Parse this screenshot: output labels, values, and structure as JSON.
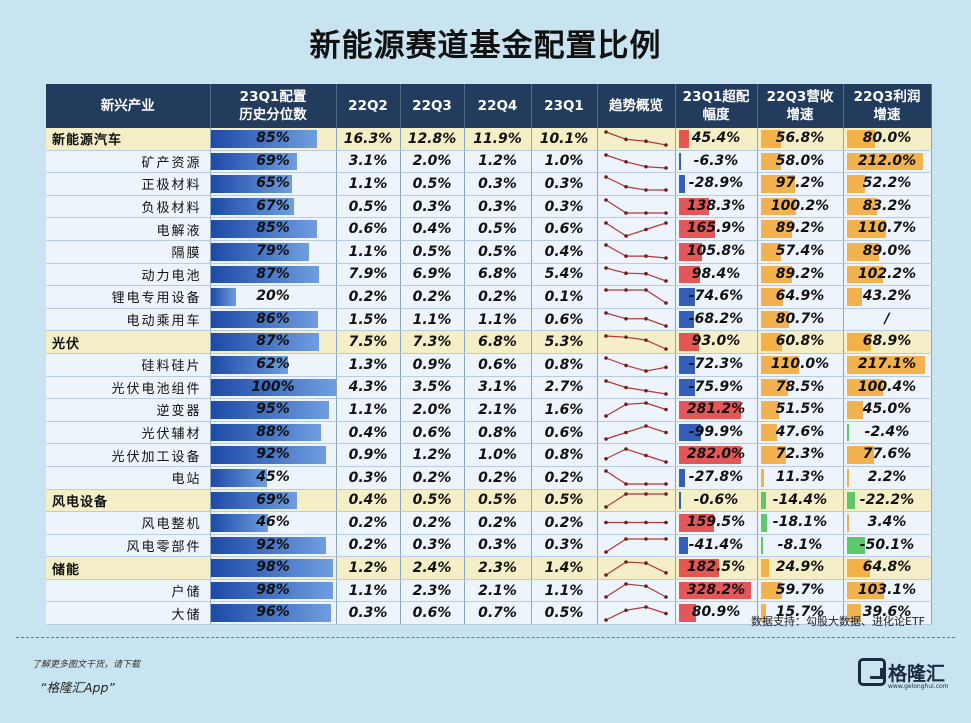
{
  "title": "新能源赛道基金配置比例",
  "headers": [
    "新兴产业",
    "23Q1配置\n历史分位数",
    "22Q2",
    "22Q3",
    "22Q4",
    "23Q1",
    "趋势概览",
    "23Q1超配\n幅度",
    "22Q3营收\n增速",
    "22Q3利润\n增速"
  ],
  "source": "数据支持：勾股大数据、进化论ETF",
  "footer": {
    "note": "了解更多图文干货，请下载",
    "app": "“格隆汇App”"
  },
  "logo": {
    "text": "格隆汇",
    "sub": "www.gelonghui.com"
  },
  "colors": {
    "percentile_bar": "#2e5fb8",
    "over_pos": "#e23b3b",
    "over_neg": "#1e4fb0",
    "growth_pos": "#f2a630",
    "growth_neg": "#4ec35c"
  },
  "chart_data": {
    "type": "table",
    "title": "新能源赛道基金配置比例",
    "rows": [
      {
        "name": "新能源汽车",
        "group": true,
        "percentile": "85%",
        "q": [
          "16.3%",
          "12.8%",
          "11.9%",
          "10.1%"
        ],
        "over": "45.4%",
        "rev": "56.8%",
        "profit": "80.0%"
      },
      {
        "name": "矿产资源",
        "group": false,
        "percentile": "69%",
        "q": [
          "3.1%",
          "2.0%",
          "1.2%",
          "1.0%"
        ],
        "over": "-6.3%",
        "rev": "58.0%",
        "profit": "212.0%"
      },
      {
        "name": "正极材料",
        "group": false,
        "percentile": "65%",
        "q": [
          "1.1%",
          "0.5%",
          "0.3%",
          "0.3%"
        ],
        "over": "-28.9%",
        "rev": "97.2%",
        "profit": "52.2%"
      },
      {
        "name": "负极材料",
        "group": false,
        "percentile": "67%",
        "q": [
          "0.5%",
          "0.3%",
          "0.3%",
          "0.3%"
        ],
        "over": "138.3%",
        "rev": "100.2%",
        "profit": "83.2%"
      },
      {
        "name": "电解液",
        "group": false,
        "percentile": "85%",
        "q": [
          "0.6%",
          "0.4%",
          "0.5%",
          "0.6%"
        ],
        "over": "165.9%",
        "rev": "89.2%",
        "profit": "110.7%"
      },
      {
        "name": "隔膜",
        "group": false,
        "percentile": "79%",
        "q": [
          "1.1%",
          "0.5%",
          "0.5%",
          "0.4%"
        ],
        "over": "105.8%",
        "rev": "57.4%",
        "profit": "89.0%"
      },
      {
        "name": "动力电池",
        "group": false,
        "percentile": "87%",
        "q": [
          "7.9%",
          "6.9%",
          "6.8%",
          "5.4%"
        ],
        "over": "98.4%",
        "rev": "89.2%",
        "profit": "102.2%"
      },
      {
        "name": "锂电专用设备",
        "group": false,
        "percentile": "20%",
        "q": [
          "0.2%",
          "0.2%",
          "0.2%",
          "0.1%"
        ],
        "over": "-74.6%",
        "rev": "64.9%",
        "profit": "43.2%"
      },
      {
        "name": "电动乘用车",
        "group": false,
        "percentile": "86%",
        "q": [
          "1.5%",
          "1.1%",
          "1.1%",
          "0.6%"
        ],
        "over": "-68.2%",
        "rev": "80.7%",
        "profit": "/"
      },
      {
        "name": "光伏",
        "group": true,
        "percentile": "87%",
        "q": [
          "7.5%",
          "7.3%",
          "6.8%",
          "5.3%"
        ],
        "over": "93.0%",
        "rev": "60.8%",
        "profit": "68.9%"
      },
      {
        "name": "硅料硅片",
        "group": false,
        "percentile": "62%",
        "q": [
          "1.3%",
          "0.9%",
          "0.6%",
          "0.8%"
        ],
        "over": "-72.3%",
        "rev": "110.0%",
        "profit": "217.1%"
      },
      {
        "name": "光伏电池组件",
        "group": false,
        "percentile": "100%",
        "q": [
          "4.3%",
          "3.5%",
          "3.1%",
          "2.7%"
        ],
        "over": "-75.9%",
        "rev": "78.5%",
        "profit": "100.4%"
      },
      {
        "name": "逆变器",
        "group": false,
        "percentile": "95%",
        "q": [
          "1.1%",
          "2.0%",
          "2.1%",
          "1.6%"
        ],
        "over": "281.2%",
        "rev": "51.5%",
        "profit": "45.0%"
      },
      {
        "name": "光伏辅材",
        "group": false,
        "percentile": "88%",
        "q": [
          "0.4%",
          "0.6%",
          "0.8%",
          "0.6%"
        ],
        "over": "-99.9%",
        "rev": "47.6%",
        "profit": "-2.4%"
      },
      {
        "name": "光伏加工设备",
        "group": false,
        "percentile": "92%",
        "q": [
          "0.9%",
          "1.2%",
          "1.0%",
          "0.8%"
        ],
        "over": "282.0%",
        "rev": "72.3%",
        "profit": "77.6%"
      },
      {
        "name": "电站",
        "group": false,
        "percentile": "45%",
        "q": [
          "0.3%",
          "0.2%",
          "0.2%",
          "0.2%"
        ],
        "over": "-27.8%",
        "rev": "11.3%",
        "profit": "2.2%"
      },
      {
        "name": "风电设备",
        "group": true,
        "percentile": "69%",
        "q": [
          "0.4%",
          "0.5%",
          "0.5%",
          "0.5%"
        ],
        "over": "-0.6%",
        "rev": "-14.4%",
        "profit": "-22.2%"
      },
      {
        "name": "风电整机",
        "group": false,
        "percentile": "46%",
        "q": [
          "0.2%",
          "0.2%",
          "0.2%",
          "0.2%"
        ],
        "over": "159.5%",
        "rev": "-18.1%",
        "profit": "3.4%"
      },
      {
        "name": "风电零部件",
        "group": false,
        "percentile": "92%",
        "q": [
          "0.2%",
          "0.3%",
          "0.3%",
          "0.3%"
        ],
        "over": "-41.4%",
        "rev": "-8.1%",
        "profit": "-50.1%"
      },
      {
        "name": "储能",
        "group": true,
        "percentile": "98%",
        "q": [
          "1.2%",
          "2.4%",
          "2.3%",
          "1.4%"
        ],
        "over": "182.5%",
        "rev": "24.9%",
        "profit": "64.8%"
      },
      {
        "name": "户储",
        "group": false,
        "percentile": "98%",
        "q": [
          "1.1%",
          "2.3%",
          "2.1%",
          "1.1%"
        ],
        "over": "328.2%",
        "rev": "59.7%",
        "profit": "103.1%"
      },
      {
        "name": "大储",
        "group": false,
        "percentile": "96%",
        "q": [
          "0.3%",
          "0.6%",
          "0.7%",
          "0.5%"
        ],
        "over": "80.9%",
        "rev": "15.7%",
        "profit": "39.6%"
      }
    ]
  }
}
